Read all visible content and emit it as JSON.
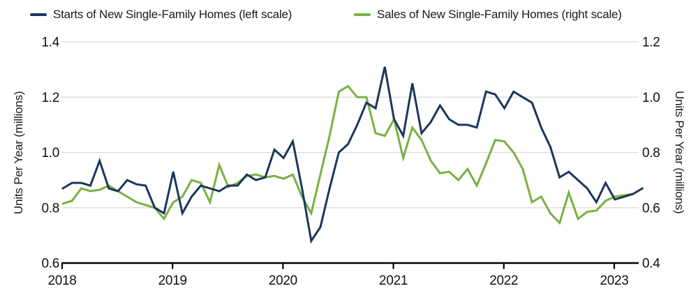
{
  "chart_data": {
    "type": "line",
    "frequency": "monthly",
    "start": "2018-01",
    "grid": true,
    "legend_position": "top",
    "colors": {
      "grid": "#d9d9d9",
      "axis": "#000000",
      "text": "#111111"
    },
    "x_axis": {
      "tick_labels": [
        "2018",
        "2019",
        "2020",
        "2021",
        "2022",
        "2023"
      ]
    },
    "left_axis": {
      "title": "Units Per Year (millions)",
      "min": 0.6,
      "max": 1.4,
      "tick_values": [
        1.4,
        1.2,
        1.0,
        0.8,
        0.6
      ],
      "tick_labels": [
        "1.4",
        "1.2",
        "1.0",
        "0.8",
        "0.6"
      ]
    },
    "right_axis": {
      "title": "Units Per Year (millions)",
      "min": 0.4,
      "max": 1.2,
      "tick_values": [
        1.2,
        1.0,
        0.8,
        0.6,
        0.4
      ],
      "tick_labels": [
        "1.2",
        "1.0",
        "0.8",
        "0.6",
        "0.4"
      ]
    },
    "series": [
      {
        "name": "Starts of New Single-Family Homes (left scale)",
        "axis": "left",
        "color": "#1b365d",
        "values": [
          0.87,
          0.89,
          0.89,
          0.88,
          0.97,
          0.87,
          0.86,
          0.9,
          0.885,
          0.88,
          0.8,
          0.78,
          0.93,
          0.78,
          0.84,
          0.88,
          0.87,
          0.86,
          0.88,
          0.88,
          0.92,
          0.9,
          0.91,
          1.01,
          0.98,
          1.04,
          0.87,
          0.68,
          0.73,
          0.87,
          1.0,
          1.03,
          1.1,
          1.18,
          1.16,
          1.31,
          1.12,
          1.06,
          1.25,
          1.07,
          1.11,
          1.17,
          1.12,
          1.1,
          1.1,
          1.09,
          1.22,
          1.21,
          1.16,
          1.22,
          1.2,
          1.18,
          1.09,
          1.02,
          0.91,
          0.93,
          0.9,
          0.87,
          0.82,
          0.89,
          0.83,
          0.84,
          0.85,
          0.87
        ]
      },
      {
        "name": "Sales of New Single-Family Homes (right scale)",
        "axis": "right",
        "color": "#78b142",
        "values": [
          0.615,
          0.625,
          0.67,
          0.66,
          0.665,
          0.68,
          0.66,
          0.64,
          0.62,
          0.61,
          0.6,
          0.56,
          0.62,
          0.64,
          0.7,
          0.69,
          0.62,
          0.755,
          0.675,
          0.69,
          0.715,
          0.72,
          0.71,
          0.715,
          0.705,
          0.72,
          0.64,
          0.58,
          0.72,
          0.86,
          1.02,
          1.04,
          1.0,
          1.0,
          0.87,
          0.86,
          0.92,
          0.78,
          0.89,
          0.845,
          0.77,
          0.725,
          0.73,
          0.7,
          0.74,
          0.68,
          0.76,
          0.845,
          0.84,
          0.8,
          0.74,
          0.62,
          0.64,
          0.58,
          0.545,
          0.655,
          0.56,
          0.585,
          0.59,
          0.625,
          0.64,
          0.645,
          0.65
        ]
      }
    ]
  }
}
